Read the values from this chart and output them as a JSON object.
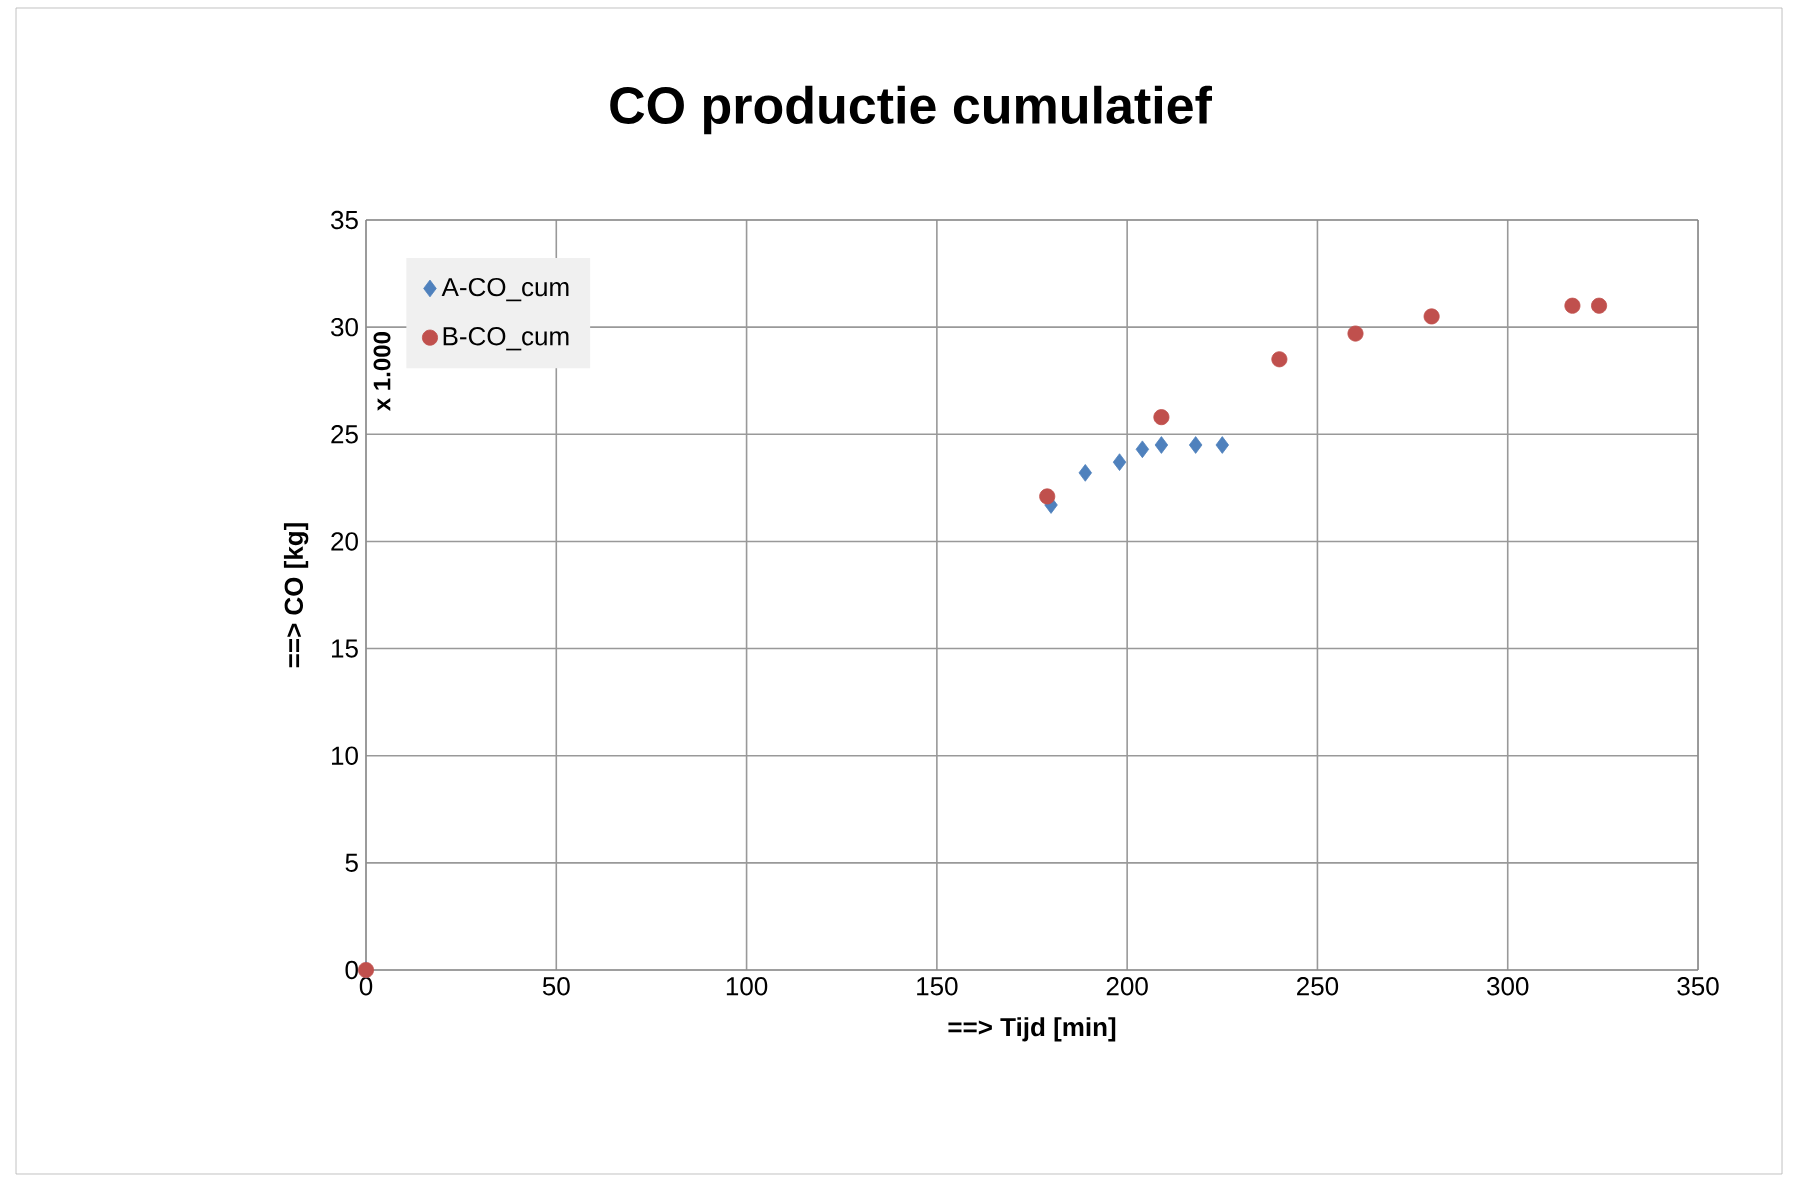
{
  "chart_data": {
    "type": "scatter",
    "title": "CO productie cumulatief",
    "xlabel": "==> Tijd [min]",
    "ylabel": "==> CO [kg]",
    "annotations": [
      "x 1.000"
    ],
    "series": [
      {
        "name": "A-CO_cum",
        "color": "#4f81bd",
        "marker": "diamond",
        "x": [
          0,
          180,
          189,
          198,
          204,
          209,
          218,
          225
        ],
        "values": [
          0,
          21.7,
          23.2,
          23.7,
          24.3,
          24.5,
          24.5,
          24.5
        ]
      },
      {
        "name": "B-CO_cum",
        "color": "#c0504d",
        "marker": "circle",
        "x": [
          0,
          179,
          209,
          240,
          260,
          280,
          317,
          324
        ],
        "values": [
          0,
          22.1,
          25.8,
          28.5,
          29.7,
          30.5,
          31.0,
          31.0
        ]
      }
    ],
    "xlim": [
      0,
      350
    ],
    "xticks": [
      0,
      50,
      100,
      150,
      200,
      250,
      300,
      350
    ],
    "ylim": [
      0,
      35
    ],
    "yticks": [
      0,
      5,
      10,
      15,
      20,
      25,
      30,
      35
    ],
    "grid": true,
    "legend": "top left"
  }
}
